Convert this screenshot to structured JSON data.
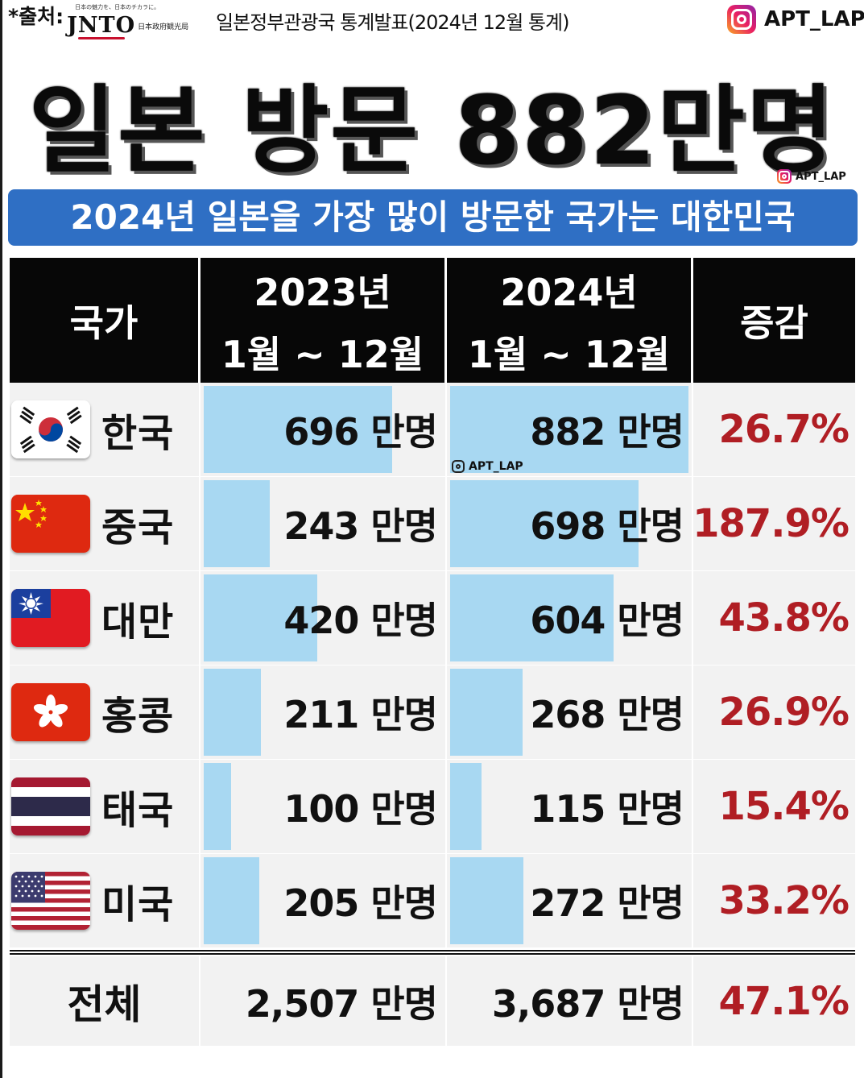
{
  "header": {
    "source_label": "*출처:",
    "jnto_tagline": "日本の魅力を、日本のチカラに。",
    "jnto_logo": "JNTO",
    "jnto_org": "日本政府観光局",
    "stats_source": "일본정부관광국 통계발표(2024년 12월 통계)",
    "instagram_handle": "APT_LAP"
  },
  "title": "일본 방문 882만명",
  "banner": "2024년 일본을 가장 많이 방문한 국가는 대한민국",
  "watermark": "APT_LAP",
  "colors": {
    "banner": "#2f6fc4",
    "bar": "#a8d8f2",
    "increase_text": "#b01e24",
    "header_bg": "#070707"
  },
  "table": {
    "headers": {
      "country": "국가",
      "y2023_year": "2023년",
      "y2023_range": "1월 ~ 12월",
      "y2024_year": "2024년",
      "y2024_range": "1월 ~ 12월",
      "change": "증감"
    },
    "rows": [
      {
        "flag": "south-korea",
        "country": "한국",
        "v2023": "696 만명",
        "v2024": "882 만명",
        "change": "26.7%"
      },
      {
        "flag": "china",
        "country": "중국",
        "v2023": "243 만명",
        "v2024": "698 만명",
        "change": "187.9%"
      },
      {
        "flag": "taiwan",
        "country": "대만",
        "v2023": "420 만명",
        "v2024": "604 만명",
        "change": "43.8%"
      },
      {
        "flag": "hong-kong",
        "country": "홍콩",
        "v2023": "211 만명",
        "v2024": "268 만명",
        "change": "26.9%"
      },
      {
        "flag": "thailand",
        "country": "태국",
        "v2023": "100 만명",
        "v2024": "115 만명",
        "change": "15.4%"
      },
      {
        "flag": "usa",
        "country": "미국",
        "v2023": "205 만명",
        "v2024": "272 만명",
        "change": "33.2%"
      }
    ],
    "total": {
      "label": "전체",
      "v2023": "2,507 만명",
      "v2024": "3,687 만명",
      "change": "47.1%"
    }
  },
  "chart_data": {
    "type": "bar",
    "title": "일본 방문 882만명",
    "subtitle": "2024년 일본을 가장 많이 방문한 국가는 대한민국",
    "categories": [
      "한국",
      "중국",
      "대만",
      "홍콩",
      "태국",
      "미국"
    ],
    "series": [
      {
        "name": "2023년 1월 ~ 12월",
        "values": [
          696,
          243,
          420,
          211,
          100,
          205
        ]
      },
      {
        "name": "2024년 1월 ~ 12월",
        "values": [
          882,
          698,
          604,
          268,
          115,
          272
        ]
      }
    ],
    "change_percent": [
      26.7,
      187.9,
      43.8,
      26.9,
      15.4,
      33.2
    ],
    "totals": {
      "2023": 2507,
      "2024": 3687,
      "change_percent": 47.1
    },
    "unit": "만명",
    "xlim": [
      0,
      882
    ]
  }
}
